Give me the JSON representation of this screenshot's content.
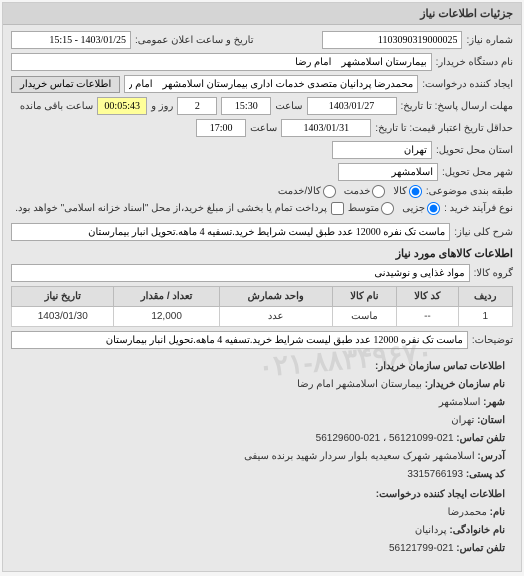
{
  "panel_title": "جزئیات اطلاعات نیاز",
  "fields": {
    "number_label": "شماره نیاز:",
    "number_value": "1103090319000025",
    "announce_label": "تاریخ و ساعت اعلان عمومی:",
    "announce_value": "1403/01/25 - 15:15",
    "buyer_org_label": "نام دستگاه خریدار:",
    "buyer_org_value": "بیمارستان اسلامشهر    امام رضا",
    "requester_label": "ایجاد کننده درخواست:",
    "requester_value": "محمدرضا پردانیان متصدی خدمات اداری بیمارستان اسلامشهر    امام رضا",
    "contact_btn": "اطلاعات تماس خریدار",
    "response_deadline_label": "مهلت ارسال پاسخ: تا تاریخ:",
    "response_date": "1403/01/27",
    "time_label": "ساعت",
    "response_time": "15:30",
    "days_num": "2",
    "days_label": "روز و",
    "remaining_time": "00:05:43",
    "remaining_label": "ساعت باقی مانده",
    "validity_label": "حداقل تاریخ اعتبار قیمت: تا تاریخ:",
    "validity_date": "1403/01/31",
    "validity_time": "17:00",
    "delivery_province_label": "استان محل تحویل:",
    "delivery_province": "تهران",
    "delivery_city_label": "شهر محل تحویل:",
    "delivery_city": "اسلامشهر",
    "budget_type_label": "طبقه بندی موضوعی:",
    "budget_opt1": "کالا",
    "budget_opt2": "خدمت",
    "budget_opt3": "کالا/خدمت",
    "process_type_label": "نوع فرآیند خرید :",
    "process_opt1": "جزیی",
    "process_opt2": "متوسط",
    "process_note": "پرداخت تمام یا بخشی از مبلغ خرید،از محل \"اسناد خزانه اسلامی\" خواهد بود.",
    "desc_label": "شرح کلی نیاز:",
    "desc_value": "ماست تک نفره 12000 عدد طبق لیست شرایط خرید.تسفیه 4 ماهه.تحویل انبار بیمارستان",
    "goods_title": "اطلاعات کالاهای مورد نیاز",
    "goods_group_label": "گروه کالا:",
    "goods_group_value": "مواد غذایی و نوشیدنی"
  },
  "table": {
    "headers": [
      "ردیف",
      "کد کالا",
      "نام کالا",
      "واحد شمارش",
      "تعداد / مقدار",
      "تاریخ نیاز"
    ],
    "rows": [
      [
        "1",
        "--",
        "ماست",
        "عدد",
        "12,000",
        "1403/01/30"
      ]
    ]
  },
  "explanation_label": "توضیحات:",
  "explanation_value": "ماست تک نفره 12000 عدد طبق لیست شرایط خرید.تسفیه 4 ماهه.تحویل انبار بیمارستان",
  "contact": {
    "title": "اطلاعات تماس سازمان خریدار:",
    "org_label": "نام سازمان خریدار:",
    "org": "بیمارستان اسلامشهر امام رضا",
    "city_label": "شهر:",
    "city": "اسلامشهر",
    "province_label": "استان:",
    "province": "تهران",
    "phone_label": "تلفن تماس:",
    "phone": "021-56121099 ، 021-56129600",
    "address_label": "آدرس:",
    "address": "اسلامشهر شهرک سعیدیه بلوار سردار شهید برنده سیفی",
    "postal_label": "کد پستی:",
    "postal": "3315766193",
    "creator_title": "اطلاعات ایجاد کننده درخواست:",
    "name_label": "نام:",
    "name": "محمدرضا",
    "family_label": "نام خانوادگی:",
    "family": "پردانیان",
    "creator_phone_label": "تلفن تماس:",
    "creator_phone": "021-56121799"
  },
  "watermark": "۰۲۱-۸۸۳۴۹۶۷۰"
}
